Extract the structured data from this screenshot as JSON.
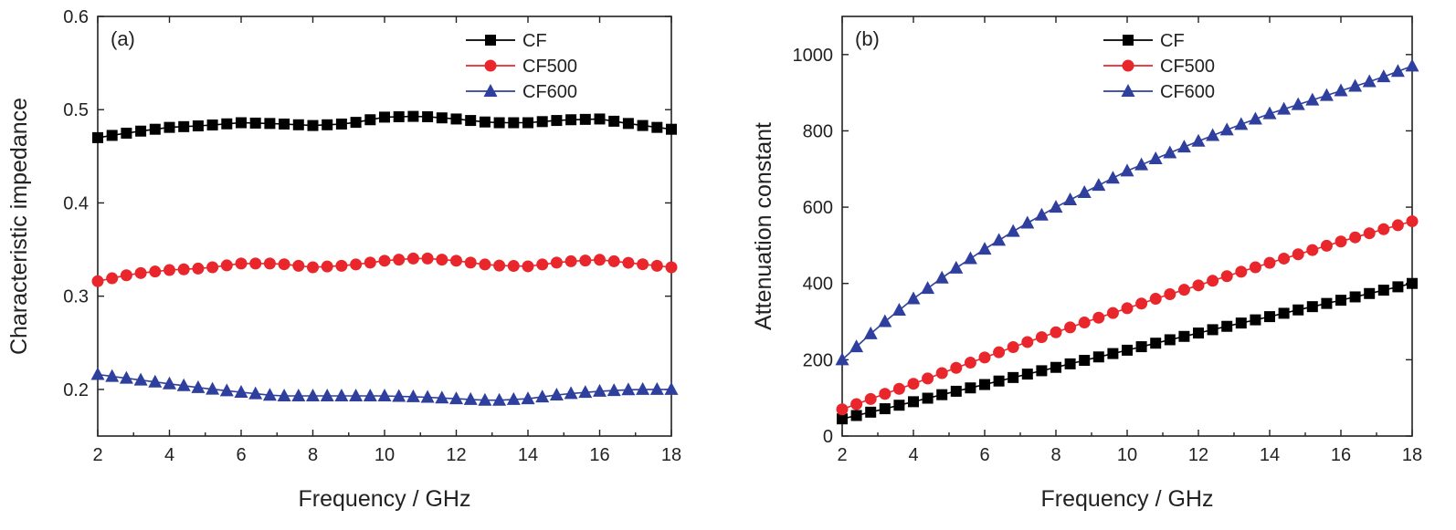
{
  "chart_data": [
    {
      "type": "line",
      "panel_label": "(a)",
      "title": "",
      "xlabel": "Frequency / GHz",
      "ylabel": "Characteristic impedance",
      "xlim": [
        2,
        18
      ],
      "ylim": [
        0.15,
        0.6
      ],
      "xticks": [
        "2",
        "4",
        "6",
        "8",
        "10",
        "12",
        "14",
        "16",
        "18"
      ],
      "yticks": [
        "0.2",
        "0.3",
        "0.4",
        "0.5",
        "0.6"
      ],
      "grid": false,
      "legend_position": "top-right",
      "x": [
        2,
        3,
        4,
        5,
        6,
        7,
        8,
        9,
        10,
        11,
        12,
        13,
        14,
        15,
        16,
        17,
        18
      ],
      "series": [
        {
          "name": "CF",
          "marker": "square",
          "color": "#000000",
          "values": [
            0.47,
            0.476,
            0.481,
            0.483,
            0.486,
            0.485,
            0.483,
            0.485,
            0.492,
            0.493,
            0.49,
            0.486,
            0.486,
            0.489,
            0.49,
            0.484,
            0.479
          ]
        },
        {
          "name": "CF500",
          "marker": "circle",
          "color": "#e8262b",
          "values": [
            0.316,
            0.324,
            0.328,
            0.33,
            0.335,
            0.335,
            0.331,
            0.333,
            0.338,
            0.341,
            0.338,
            0.333,
            0.332,
            0.337,
            0.339,
            0.335,
            0.331
          ]
        },
        {
          "name": "CF600",
          "marker": "triangle",
          "color": "#2e3f9e",
          "values": [
            0.216,
            0.211,
            0.206,
            0.201,
            0.197,
            0.193,
            0.193,
            0.193,
            0.193,
            0.192,
            0.19,
            0.188,
            0.19,
            0.195,
            0.198,
            0.2,
            0.2
          ]
        }
      ]
    },
    {
      "type": "line",
      "panel_label": "(b)",
      "title": "",
      "xlabel": "Frequency / GHz",
      "ylabel": "Attenuation constant",
      "xlim": [
        2,
        18
      ],
      "ylim": [
        0,
        1100
      ],
      "xticks": [
        "2",
        "4",
        "6",
        "8",
        "10",
        "12",
        "14",
        "16",
        "18"
      ],
      "yticks": [
        "0",
        "200",
        "400",
        "600",
        "800",
        "1000"
      ],
      "grid": false,
      "legend_position": "top-center",
      "x": [
        2,
        3,
        4,
        5,
        6,
        7,
        8,
        9,
        10,
        11,
        12,
        13,
        14,
        15,
        16,
        17,
        18
      ],
      "series": [
        {
          "name": "CF",
          "marker": "square",
          "color": "#000000",
          "values": [
            45,
            67,
            90,
            113,
            135,
            158,
            180,
            203,
            225,
            248,
            270,
            292,
            313,
            335,
            356,
            378,
            400
          ]
        },
        {
          "name": "CF500",
          "marker": "circle",
          "color": "#e8262b",
          "values": [
            70,
            104,
            137,
            172,
            206,
            240,
            272,
            304,
            335,
            366,
            395,
            425,
            454,
            482,
            510,
            537,
            563
          ]
        },
        {
          "name": "CF600",
          "marker": "triangle",
          "color": "#2e3f9e",
          "values": [
            200,
            285,
            360,
            428,
            490,
            548,
            600,
            648,
            695,
            735,
            773,
            810,
            845,
            875,
            905,
            935,
            970
          ]
        }
      ]
    }
  ]
}
